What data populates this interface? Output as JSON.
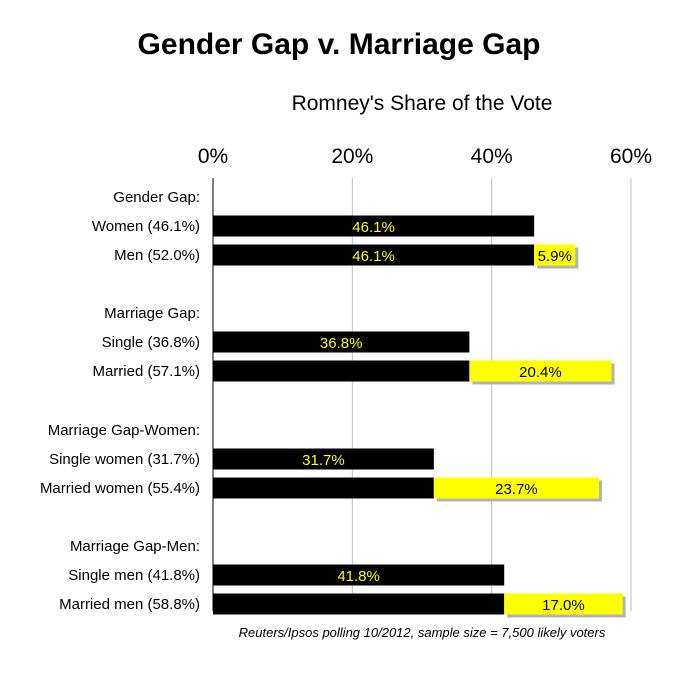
{
  "chart_data": {
    "type": "bar",
    "stacked": true,
    "orientation": "horizontal",
    "title": "Gender Gap v. Marriage Gap",
    "subtitle": "Romney's Share of the Vote",
    "xlim": [
      0,
      60
    ],
    "xticks": [
      "0%",
      "20%",
      "40%",
      "60%"
    ],
    "groups": [
      {
        "heading": "Gender Gap:",
        "bars": [
          {
            "label": "Women (46.1%)",
            "base": 46.1,
            "base_label": "46.1%",
            "gap": null,
            "gap_label": null
          },
          {
            "label": "Men (52.0%)",
            "base": 46.1,
            "base_label": "46.1%",
            "gap": 5.9,
            "gap_label": "5.9%"
          }
        ]
      },
      {
        "heading": "Marriage Gap:",
        "bars": [
          {
            "label": "Single (36.8%)",
            "base": 36.8,
            "base_label": "36.8%",
            "gap": null,
            "gap_label": null
          },
          {
            "label": "Married (57.1%)",
            "base": 36.8,
            "base_label": null,
            "gap": 20.4,
            "gap_label": "20.4%"
          }
        ]
      },
      {
        "heading": "Marriage Gap-Women:",
        "bars": [
          {
            "label": "Single women (31.7%)",
            "base": 31.7,
            "base_label": "31.7%",
            "gap": null,
            "gap_label": null
          },
          {
            "label": "Married women (55.4%)",
            "base": 31.7,
            "base_label": null,
            "gap": 23.7,
            "gap_label": "23.7%"
          }
        ]
      },
      {
        "heading": "Marriage Gap-Men:",
        "bars": [
          {
            "label": "Single men (41.8%)",
            "base": 41.8,
            "base_label": "41.8%",
            "gap": null,
            "gap_label": null
          },
          {
            "label": "Married men (58.8%)",
            "base": 41.8,
            "base_label": null,
            "gap": 17.0,
            "gap_label": "17.0%"
          }
        ]
      }
    ],
    "colors": {
      "base": "#000000",
      "gap": "#ffff00",
      "base_label": "#ffff00",
      "gap_label": "#000000",
      "grid": "#bfbfbf"
    },
    "source_note": "Reuters/Ipsos polling 10/2012, sample size = 7,500 likely voters"
  }
}
